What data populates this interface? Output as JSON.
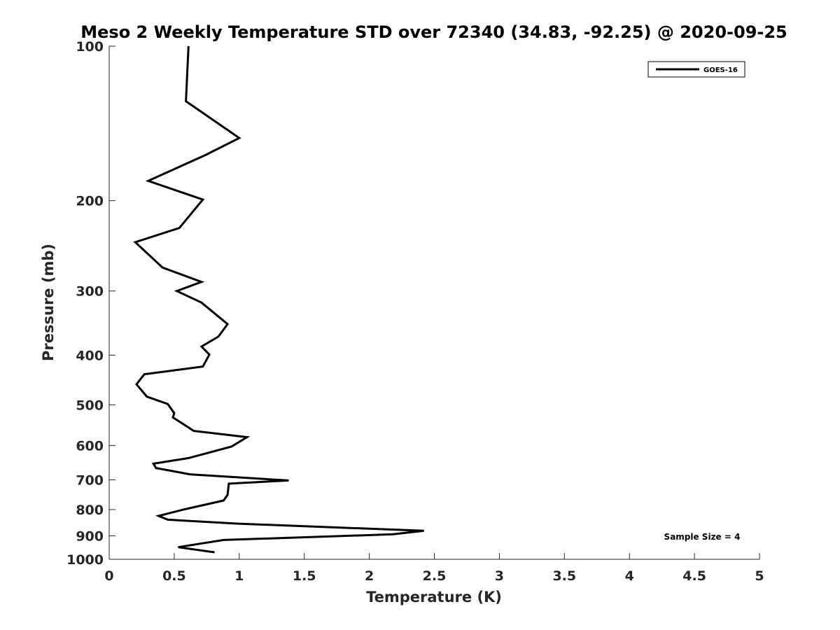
{
  "chart_data": {
    "type": "line",
    "title": "Meso 2 Weekly Temperature STD over 72340 (34.83, -92.25) @ 2020-09-25",
    "xlabel": "Temperature (K)",
    "ylabel": "Pressure (mb)",
    "xlim": [
      0,
      5
    ],
    "ylim": [
      1000,
      100
    ],
    "y_scale": "log",
    "y_reversed": true,
    "xticks": [
      0,
      0.5,
      1,
      1.5,
      2,
      2.5,
      3,
      3.5,
      4,
      4.5,
      5
    ],
    "xtick_labels": [
      "0",
      "0.5",
      "1",
      "1.5",
      "2",
      "2.5",
      "3",
      "3.5",
      "4",
      "4.5",
      "5"
    ],
    "yticks": [
      100,
      200,
      300,
      400,
      500,
      600,
      700,
      800,
      900,
      1000
    ],
    "ytick_labels": [
      "100",
      "200",
      "300",
      "400",
      "500",
      "600",
      "700",
      "800",
      "900",
      "1000"
    ],
    "grid": false,
    "legend_position": "top-right",
    "annotation": "Sample Size = 4",
    "series": [
      {
        "name": "GOES-16",
        "color": "#000000",
        "x": [
          0.61,
          0.59,
          1.0,
          0.74,
          0.3,
          0.72,
          0.54,
          0.2,
          0.41,
          0.71,
          0.52,
          0.71,
          0.91,
          0.84,
          0.71,
          0.77,
          0.72,
          0.27,
          0.21,
          0.29,
          0.45,
          0.5,
          0.49,
          0.65,
          1.06,
          0.94,
          0.61,
          0.34,
          0.36,
          0.62,
          1.38,
          0.92,
          0.91,
          0.88,
          0.57,
          0.38,
          0.45,
          0.98,
          2.42,
          2.18,
          0.88,
          0.53,
          0.81
        ],
        "y": [
          100,
          128,
          151,
          163,
          183,
          199,
          226,
          241,
          270,
          288,
          300,
          316,
          348,
          368,
          385,
          399,
          421,
          436,
          456,
          482,
          498,
          519,
          529,
          562,
          578,
          603,
          635,
          651,
          664,
          683,
          702,
          712,
          749,
          768,
          800,
          823,
          837,
          852,
          880,
          894,
          917,
          947,
          969
        ]
      }
    ]
  }
}
